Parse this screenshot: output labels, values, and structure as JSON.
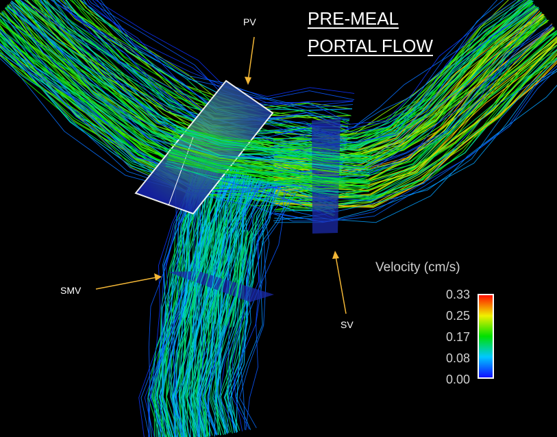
{
  "title": {
    "line1": "PRE-MEAL",
    "line2": "PORTAL FLOW"
  },
  "labels": {
    "pv": "PV",
    "smv": "SMV",
    "sv": "SV"
  },
  "legend": {
    "title": "Velocity (cm/s)",
    "ticks": [
      "0.33",
      "0.25",
      "0.17",
      "0.08",
      "0.00"
    ],
    "min": 0.0,
    "max": 0.33,
    "colormap": [
      "#1010ff",
      "#00c8ff",
      "#00e000",
      "#f0f000",
      "#ff1000"
    ]
  },
  "colors": {
    "background": "#000000",
    "arrow": "#f2b636",
    "plane": "#1020a0",
    "text": "#ffffff",
    "legend_text": "#d0d0d0"
  }
}
